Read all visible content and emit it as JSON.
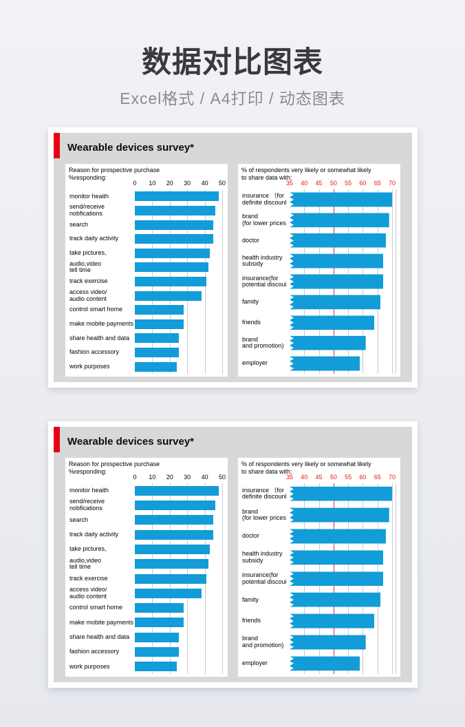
{
  "page": {
    "title": "数据对比图表",
    "subtitle": "Excel格式 / A4打印 / 动态图表"
  },
  "panel": {
    "title": "Wearable devices survey*"
  },
  "colors": {
    "bar_blue": "#129cd8",
    "accent_red": "#e60014",
    "axis_red": "#ee1111",
    "reference_red": "#e03030",
    "gridline_gray": "#c9c9c9",
    "panel_gray": "#d8d8d8"
  },
  "chart_data": [
    {
      "type": "bar",
      "orientation": "horizontal",
      "title": "Reason for prospective purchase",
      "subtitle": "%responding:",
      "xlim": [
        0,
        50
      ],
      "xticks": [
        0,
        10,
        20,
        30,
        40,
        50
      ],
      "grid": true,
      "tick_color": "black",
      "categories": [
        "monitor heaith",
        "send/receive\nnobfications",
        "search",
        "track daity activity",
        "take pictures,",
        "audio,video\ntell time",
        "track exercise",
        "access video/\naudio content",
        "control smart home",
        "make mobite payments",
        "share health and data",
        "fashion accessory",
        "work purposes"
      ],
      "values": [
        48,
        46,
        45,
        45,
        43,
        42,
        41,
        38,
        28,
        28,
        25,
        25,
        24
      ]
    },
    {
      "type": "bar",
      "orientation": "horizontal",
      "title": "% of respondents very likely or somewhat likely",
      "subtitle": "to share data with:",
      "xlim": [
        35,
        70
      ],
      "xticks": [
        35,
        40,
        45,
        50,
        55,
        60,
        65,
        70
      ],
      "grid": true,
      "tick_color": "red",
      "reference_line": 50,
      "notched_bars": true,
      "categories": [
        "insurance （for\ndefinite discounl",
        "brand\n(for lower prices",
        "doctor",
        "health industry\nsubsidy",
        "insurance(for\npotential discoui",
        "famity",
        "friends",
        "brand\nand promotion)",
        "employer"
      ],
      "values": [
        70,
        69,
        68,
        67,
        67,
        66,
        64,
        61,
        59
      ]
    }
  ]
}
